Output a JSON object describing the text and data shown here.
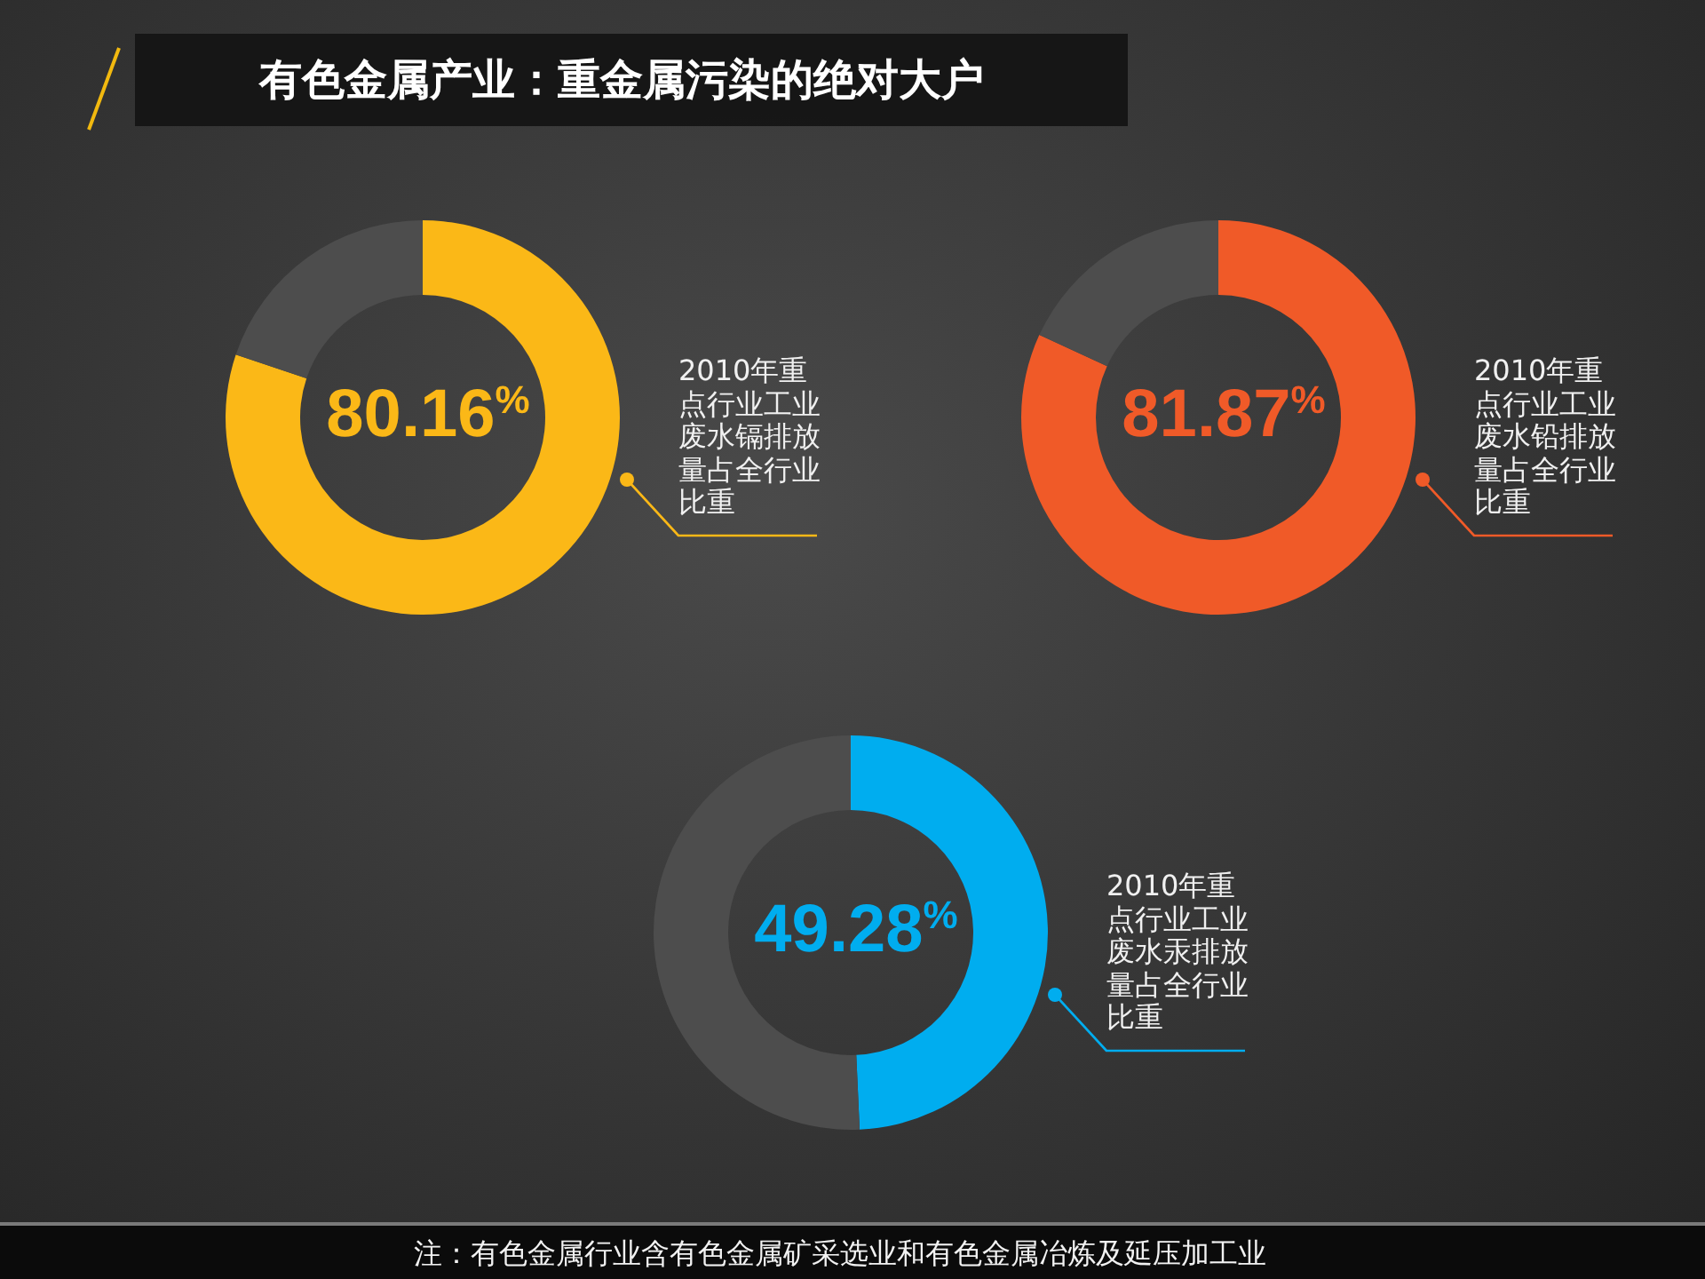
{
  "chart_data": [
    {
      "type": "donut",
      "title": "有色金属产业：重金属污染的绝对大户",
      "categories": [
        "2010年重点行业工业废水镉排放量占全行业比重",
        null
      ],
      "values": [
        80.16,
        19.84
      ],
      "colors": [
        "#fbb817",
        "#4d4d4d"
      ],
      "value_labels": [
        "80.16$^{%}$",
        null
      ]
    },
    {
      "type": "donut",
      "categories": [
        "2010年重点行业工业废水铅排放量占全行业比重",
        null
      ],
      "values": [
        81.87,
        18.13
      ],
      "colors": [
        "#f05a28",
        "#4d4d4d"
      ],
      "value_labels": [
        "81.87$^{%}$",
        null
      ]
    },
    {
      "type": "donut",
      "categories": [
        "2010年重点行业工业废水汞排放量占全行业比重",
        null
      ],
      "values": [
        49.28,
        50.72
      ],
      "colors": [
        "#00adef",
        "#4d4d4d"
      ],
      "value_labels": [
        "49.28$^{%}$",
        null
      ],
      "annotations": [
        "注：有色金属行业含有色金属矿采选业和有色金属冶炼及延压加工业"
      ]
    }
  ]
}
